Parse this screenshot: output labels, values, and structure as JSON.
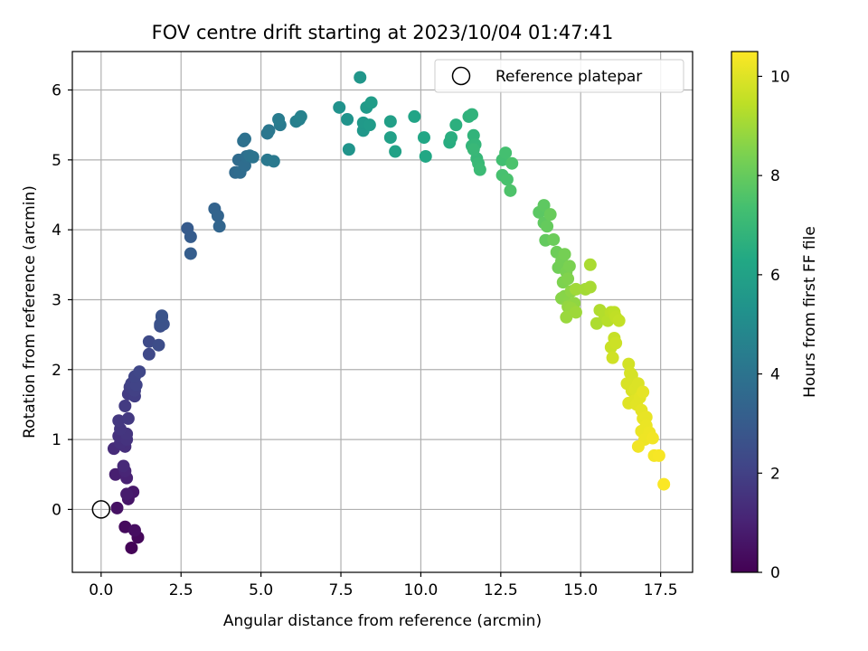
{
  "chart_data": {
    "type": "scatter",
    "title": "FOV centre drift starting at 2023/10/04 01:47:41",
    "xlabel": "Angular distance from reference (arcmin)",
    "ylabel": "Rotation from reference (arcmin)",
    "xlim": [
      -0.9,
      18.5
    ],
    "ylim": [
      -0.9,
      6.55
    ],
    "xticks": [
      0.0,
      2.5,
      5.0,
      7.5,
      10.0,
      12.5,
      15.0,
      17.5
    ],
    "xtick_labels": [
      "0.0",
      "2.5",
      "5.0",
      "7.5",
      "10.0",
      "12.5",
      "15.0",
      "17.5"
    ],
    "yticks": [
      0,
      1,
      2,
      3,
      4,
      5,
      6
    ],
    "ytick_labels": [
      "0",
      "1",
      "2",
      "3",
      "4",
      "5",
      "6"
    ],
    "grid": true,
    "legend": {
      "placement": "top-right",
      "entries": [
        "Reference platepar"
      ]
    },
    "reference_point": {
      "x": 0.0,
      "y": 0.0,
      "label": "Reference platepar"
    },
    "colorbar": {
      "label": "Hours from first FF file",
      "colormap": "viridis",
      "range": [
        0,
        10.5
      ],
      "ticks": [
        0,
        2,
        4,
        6,
        8,
        10
      ],
      "tick_labels": [
        "0",
        "2",
        "4",
        "6",
        "8",
        "10"
      ]
    },
    "points": [
      [
        0.95,
        -0.55,
        0.1
      ],
      [
        1.15,
        -0.4,
        0.2
      ],
      [
        0.75,
        -0.25,
        0.3
      ],
      [
        1.05,
        -0.3,
        0.4
      ],
      [
        0.5,
        0.02,
        0.5
      ],
      [
        0.85,
        0.15,
        0.6
      ],
      [
        1.0,
        0.25,
        0.7
      ],
      [
        0.8,
        0.22,
        0.8
      ],
      [
        0.45,
        0.5,
        0.9
      ],
      [
        0.8,
        0.45,
        1.0
      ],
      [
        0.75,
        0.55,
        1.1
      ],
      [
        0.7,
        0.62,
        1.2
      ],
      [
        0.4,
        0.87,
        1.3
      ],
      [
        0.75,
        0.9,
        1.4
      ],
      [
        0.6,
        0.95,
        1.45
      ],
      [
        0.55,
        1.05,
        1.5
      ],
      [
        0.8,
        1.0,
        1.55
      ],
      [
        0.8,
        1.08,
        1.6
      ],
      [
        0.6,
        1.15,
        1.65
      ],
      [
        0.55,
        1.27,
        1.7
      ],
      [
        0.85,
        1.3,
        1.75
      ],
      [
        0.75,
        1.48,
        1.8
      ],
      [
        0.85,
        1.65,
        1.85
      ],
      [
        1.05,
        1.62,
        1.9
      ],
      [
        0.9,
        1.75,
        1.95
      ],
      [
        1.05,
        1.7,
        2.0
      ],
      [
        0.95,
        1.8,
        2.05
      ],
      [
        1.1,
        1.78,
        2.1
      ],
      [
        1.05,
        1.9,
        2.15
      ],
      [
        1.2,
        1.97,
        2.2
      ],
      [
        1.5,
        2.22,
        2.3
      ],
      [
        1.5,
        2.4,
        2.35
      ],
      [
        1.8,
        2.35,
        2.45
      ],
      [
        1.85,
        2.62,
        2.5
      ],
      [
        1.9,
        2.75,
        2.55
      ],
      [
        1.85,
        2.65,
        2.6
      ],
      [
        1.95,
        2.65,
        2.65
      ],
      [
        1.9,
        2.77,
        2.7
      ],
      [
        2.7,
        4.02,
        3.0
      ],
      [
        2.8,
        3.9,
        3.05
      ],
      [
        2.8,
        3.66,
        3.1
      ],
      [
        3.55,
        4.3,
        3.3
      ],
      [
        3.65,
        4.2,
        3.35
      ],
      [
        3.7,
        4.05,
        3.4
      ],
      [
        4.2,
        4.82,
        3.6
      ],
      [
        4.3,
        5.0,
        3.65
      ],
      [
        4.35,
        4.82,
        3.7
      ],
      [
        4.5,
        4.92,
        3.75
      ],
      [
        4.55,
        5.05,
        3.8
      ],
      [
        4.45,
        5.27,
        3.85
      ],
      [
        4.5,
        5.3,
        3.9
      ],
      [
        4.65,
        5.06,
        3.95
      ],
      [
        4.75,
        5.04,
        4.0
      ],
      [
        5.2,
        5.38,
        4.1
      ],
      [
        5.25,
        5.42,
        4.15
      ],
      [
        5.2,
        5.0,
        4.2
      ],
      [
        5.4,
        4.98,
        4.25
      ],
      [
        5.6,
        5.5,
        4.3
      ],
      [
        5.55,
        5.58,
        4.35
      ],
      [
        6.1,
        5.55,
        4.5
      ],
      [
        6.2,
        5.58,
        4.55
      ],
      [
        6.25,
        5.62,
        4.6
      ],
      [
        7.45,
        5.75,
        5.3
      ],
      [
        7.7,
        5.58,
        5.35
      ],
      [
        7.75,
        5.15,
        5.4
      ],
      [
        8.1,
        6.18,
        5.5
      ],
      [
        8.2,
        5.42,
        5.55
      ],
      [
        8.2,
        5.53,
        5.6
      ],
      [
        8.3,
        5.75,
        5.65
      ],
      [
        8.4,
        5.5,
        5.7
      ],
      [
        8.45,
        5.82,
        5.75
      ],
      [
        9.05,
        5.55,
        5.9
      ],
      [
        9.05,
        5.32,
        5.95
      ],
      [
        9.2,
        5.12,
        6.0
      ],
      [
        9.8,
        5.62,
        6.1
      ],
      [
        10.1,
        5.32,
        6.2
      ],
      [
        10.15,
        5.05,
        6.25
      ],
      [
        10.9,
        5.25,
        6.5
      ],
      [
        10.95,
        5.32,
        6.55
      ],
      [
        11.1,
        5.5,
        6.6
      ],
      [
        11.5,
        5.62,
        6.7
      ],
      [
        11.6,
        5.65,
        6.75
      ],
      [
        11.65,
        5.35,
        6.8
      ],
      [
        11.6,
        5.2,
        6.85
      ],
      [
        11.7,
        5.22,
        6.9
      ],
      [
        11.75,
        5.02,
        6.95
      ],
      [
        11.65,
        5.15,
        7.0
      ],
      [
        11.8,
        4.95,
        7.05
      ],
      [
        11.85,
        4.86,
        7.1
      ],
      [
        12.55,
        5.0,
        7.3
      ],
      [
        12.65,
        5.1,
        7.35
      ],
      [
        12.55,
        4.78,
        7.4
      ],
      [
        12.7,
        4.72,
        7.45
      ],
      [
        12.85,
        4.95,
        7.5
      ],
      [
        12.8,
        4.56,
        7.55
      ],
      [
        13.7,
        4.25,
        7.8
      ],
      [
        13.85,
        4.35,
        7.85
      ],
      [
        13.85,
        4.1,
        7.9
      ],
      [
        13.9,
        3.85,
        7.95
      ],
      [
        13.95,
        4.05,
        8.0
      ],
      [
        14.05,
        4.22,
        8.05
      ],
      [
        14.15,
        3.86,
        8.1
      ],
      [
        14.25,
        3.68,
        8.15
      ],
      [
        14.3,
        3.46,
        8.2
      ],
      [
        14.4,
        3.55,
        8.25
      ],
      [
        14.5,
        3.65,
        8.3
      ],
      [
        14.55,
        3.4,
        8.35
      ],
      [
        14.65,
        3.48,
        8.4
      ],
      [
        14.45,
        3.25,
        8.45
      ],
      [
        14.6,
        3.3,
        8.5
      ],
      [
        14.5,
        3.05,
        8.55
      ],
      [
        14.4,
        3.02,
        8.6
      ],
      [
        14.6,
        2.95,
        8.65
      ],
      [
        14.7,
        3.12,
        8.7
      ],
      [
        14.8,
        2.95,
        8.75
      ],
      [
        14.6,
        2.9,
        8.8
      ],
      [
        14.7,
        2.88,
        8.85
      ],
      [
        14.55,
        2.75,
        8.9
      ],
      [
        14.85,
        2.82,
        8.95
      ],
      [
        14.85,
        3.15,
        9.0
      ],
      [
        15.15,
        3.15,
        9.05
      ],
      [
        15.3,
        3.18,
        9.1
      ],
      [
        15.3,
        3.5,
        9.15
      ],
      [
        15.5,
        2.66,
        9.2
      ],
      [
        15.6,
        2.85,
        9.25
      ],
      [
        15.75,
        2.78,
        9.3
      ],
      [
        15.85,
        2.7,
        9.35
      ],
      [
        15.95,
        2.82,
        9.4
      ],
      [
        16.05,
        2.82,
        9.45
      ],
      [
        16.1,
        2.75,
        9.5
      ],
      [
        16.2,
        2.7,
        9.55
      ],
      [
        16.05,
        2.45,
        9.6
      ],
      [
        15.95,
        2.32,
        9.65
      ],
      [
        16.1,
        2.38,
        9.7
      ],
      [
        16.0,
        2.17,
        9.75
      ],
      [
        16.5,
        2.08,
        9.8
      ],
      [
        16.55,
        1.95,
        9.85
      ],
      [
        16.6,
        1.92,
        9.85
      ],
      [
        16.45,
        1.8,
        9.9
      ],
      [
        16.6,
        1.7,
        9.9
      ],
      [
        16.7,
        1.72,
        9.95
      ],
      [
        16.8,
        1.8,
        9.95
      ],
      [
        16.5,
        1.52,
        10.0
      ],
      [
        16.65,
        1.55,
        10.0
      ],
      [
        16.75,
        1.5,
        10.05
      ],
      [
        16.85,
        1.6,
        10.05
      ],
      [
        16.95,
        1.68,
        10.1
      ],
      [
        16.9,
        1.42,
        10.1
      ],
      [
        16.95,
        1.3,
        10.15
      ],
      [
        17.05,
        1.32,
        10.15
      ],
      [
        17.05,
        1.2,
        10.2
      ],
      [
        16.9,
        1.12,
        10.2
      ],
      [
        17.15,
        1.1,
        10.25
      ],
      [
        17.0,
        1.0,
        10.25
      ],
      [
        16.8,
        0.9,
        10.3
      ],
      [
        17.25,
        1.02,
        10.3
      ],
      [
        17.3,
        0.77,
        10.35
      ],
      [
        17.45,
        0.77,
        10.4
      ],
      [
        17.6,
        0.36,
        10.45
      ]
    ]
  }
}
